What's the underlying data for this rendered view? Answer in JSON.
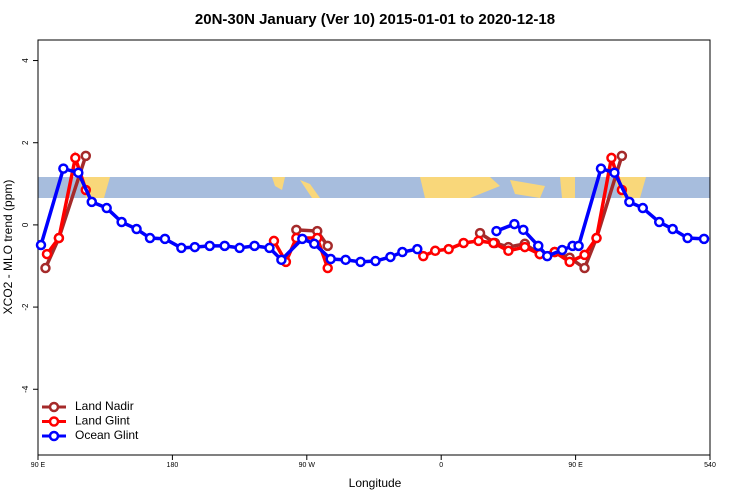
{
  "chart_data": {
    "type": "line",
    "title": "20N-30N January (Ver 10)   2015-01-01 to 2020-12-18",
    "x_label": "Longitude",
    "y_label": "XCO2 - MLO trend (ppm)",
    "xlim": [
      90,
      540
    ],
    "xticks": [
      {
        "value": 90,
        "label": "90 E"
      },
      180,
      {
        "value": 270,
        "label": "90 W"
      },
      {
        "value": 360,
        "label": "0"
      },
      {
        "value": 450,
        "label": "90 E"
      },
      540
    ],
    "ylim": [
      -5.6,
      4.5
    ],
    "yticks": [
      -4,
      -2,
      0,
      2,
      4
    ],
    "legend": "bottom-left",
    "series": [
      {
        "name": "Land Nadir",
        "color": "#a52a2a",
        "x": [
          95,
          104,
          122,
          null,
          263,
          277,
          284,
          null,
          386,
          396,
          405,
          416,
          426,
          436,
          446,
          456,
          464,
          481
        ],
        "values": [
          -1.05,
          -0.32,
          1.68,
          null,
          -0.12,
          -0.15,
          -0.51,
          null,
          -0.2,
          -0.44,
          -0.54,
          -0.46,
          -0.71,
          -0.66,
          -0.8,
          -1.05,
          -0.32,
          1.68
        ]
      },
      {
        "name": "Land Glint",
        "color": "#ff0000",
        "x": [
          96,
          104,
          115,
          122,
          null,
          248,
          256,
          263,
          277,
          284,
          null,
          348,
          356,
          365,
          375,
          385,
          395,
          405,
          416,
          426,
          436,
          446,
          456,
          464,
          474,
          481
        ],
        "values": [
          -0.71,
          -0.32,
          1.63,
          0.85,
          null,
          -0.39,
          -0.9,
          -0.32,
          -0.32,
          -1.05,
          null,
          -0.76,
          -0.63,
          -0.59,
          -0.44,
          -0.39,
          -0.44,
          -0.63,
          -0.54,
          -0.71,
          -0.66,
          -0.9,
          -0.73,
          -0.32,
          1.63,
          0.85
        ]
      },
      {
        "name": "Ocean Glint",
        "color": "#0000ff",
        "x": [
          92,
          107,
          117,
          126,
          136,
          146,
          156,
          165,
          175,
          186,
          195,
          205,
          215,
          225,
          235,
          245,
          253,
          267,
          275,
          286,
          296,
          306,
          316,
          326,
          334,
          344,
          null,
          397,
          409,
          415,
          425,
          431,
          441,
          448,
          452,
          467,
          476,
          486,
          495,
          506,
          515,
          525,
          536
        ],
        "values": [
          -0.49,
          1.37,
          1.27,
          0.56,
          0.41,
          0.07,
          -0.1,
          -0.32,
          -0.34,
          -0.56,
          -0.54,
          -0.51,
          -0.51,
          -0.56,
          -0.51,
          -0.56,
          -0.85,
          -0.34,
          -0.46,
          -0.83,
          -0.85,
          -0.9,
          -0.88,
          -0.78,
          -0.66,
          -0.59,
          null,
          -0.15,
          0.02,
          -0.12,
          -0.51,
          -0.76,
          -0.61,
          -0.51,
          -0.51,
          1.37,
          1.27,
          0.56,
          0.41,
          0.07,
          -0.1,
          -0.32,
          -0.34
        ]
      }
    ]
  }
}
